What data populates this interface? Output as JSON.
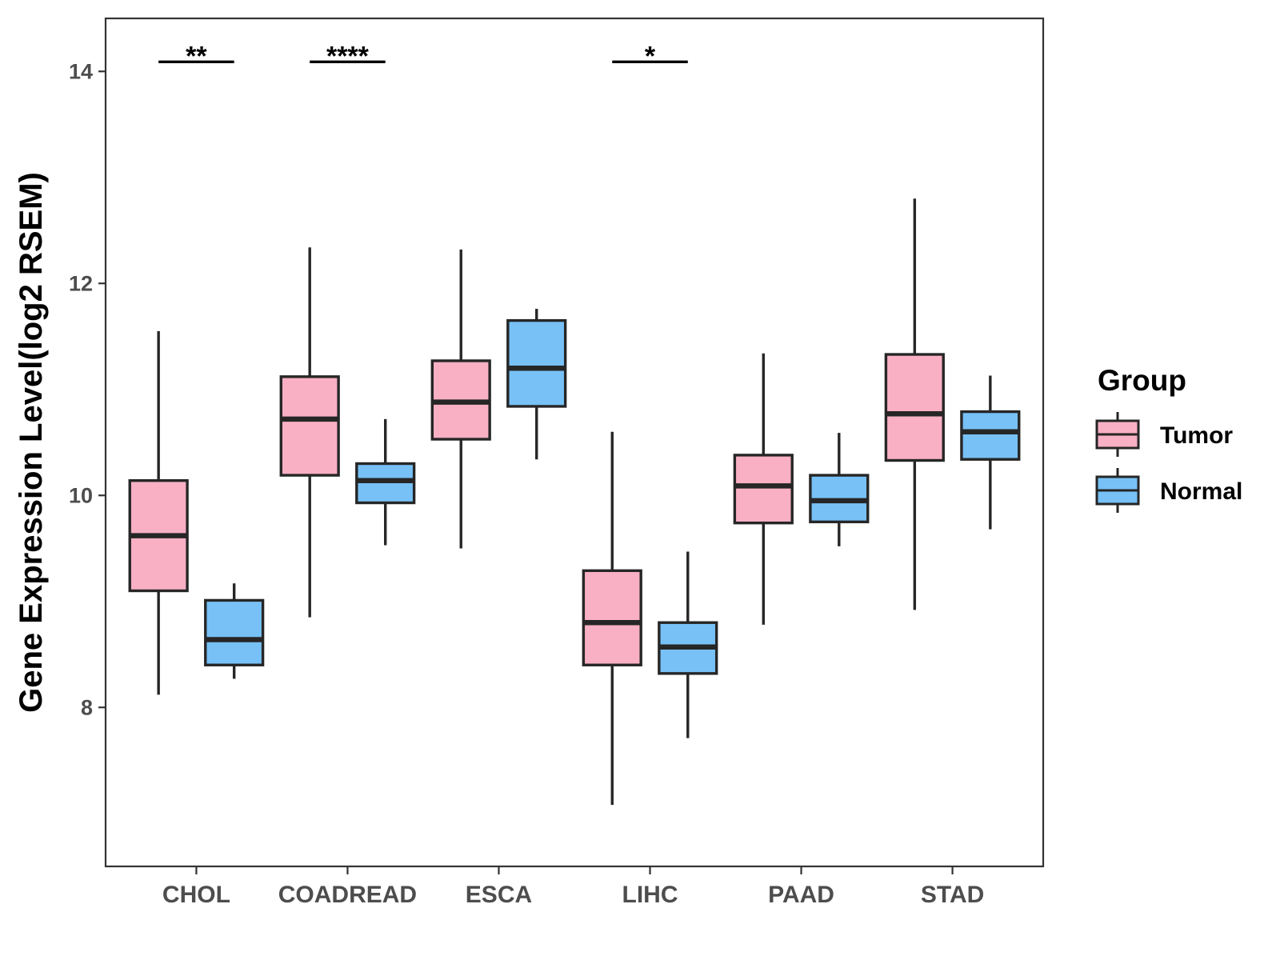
{
  "chart_data": {
    "type": "boxplot",
    "title": "",
    "xlabel": "",
    "ylabel": "Gene Expression Level(log2 RSEM)",
    "ylim": [
      6.5,
      14.5
    ],
    "yticks": [
      8,
      10,
      12,
      14
    ],
    "grid": false,
    "categories": [
      "CHOL",
      "COADREAD",
      "ESCA",
      "LIHC",
      "PAAD",
      "STAD"
    ],
    "legend": {
      "title": "Group",
      "position": "right",
      "entries": [
        {
          "name": "Tumor",
          "color": "#f9b0c4"
        },
        {
          "name": "Normal",
          "color": "#77c1f7"
        }
      ]
    },
    "series": [
      {
        "name": "Tumor",
        "color": "#f9b0c4",
        "boxes": [
          {
            "min": 8.12,
            "q1": 9.1,
            "median": 9.62,
            "q3": 10.14,
            "max": 11.55
          },
          {
            "min": 8.85,
            "q1": 10.19,
            "median": 10.72,
            "q3": 11.12,
            "max": 12.34
          },
          {
            "min": 9.5,
            "q1": 10.53,
            "median": 10.88,
            "q3": 11.27,
            "max": 12.32
          },
          {
            "min": 7.08,
            "q1": 8.4,
            "median": 8.8,
            "q3": 9.29,
            "max": 10.6
          },
          {
            "min": 8.78,
            "q1": 9.74,
            "median": 10.09,
            "q3": 10.38,
            "max": 11.34
          },
          {
            "min": 8.92,
            "q1": 10.33,
            "median": 10.77,
            "q3": 11.33,
            "max": 12.8
          }
        ]
      },
      {
        "name": "Normal",
        "color": "#77c1f7",
        "boxes": [
          {
            "min": 8.27,
            "q1": 8.4,
            "median": 8.64,
            "q3": 9.01,
            "max": 9.17
          },
          {
            "min": 9.53,
            "q1": 9.93,
            "median": 10.14,
            "q3": 10.3,
            "max": 10.72
          },
          {
            "min": 10.34,
            "q1": 10.84,
            "median": 11.2,
            "q3": 11.65,
            "max": 11.76
          },
          {
            "min": 7.71,
            "q1": 8.32,
            "median": 8.57,
            "q3": 8.8,
            "max": 9.47
          },
          {
            "min": 9.52,
            "q1": 9.75,
            "median": 9.95,
            "q3": 10.19,
            "max": 10.59
          },
          {
            "min": 9.68,
            "q1": 10.34,
            "median": 10.6,
            "q3": 10.79,
            "max": 11.13
          }
        ]
      }
    ],
    "significance": [
      {
        "category": "CHOL",
        "label": "**",
        "y": 14.09
      },
      {
        "category": "COADREAD",
        "label": "****",
        "y": 14.09
      },
      {
        "category": "LIHC",
        "label": "*",
        "y": 14.09
      }
    ]
  }
}
